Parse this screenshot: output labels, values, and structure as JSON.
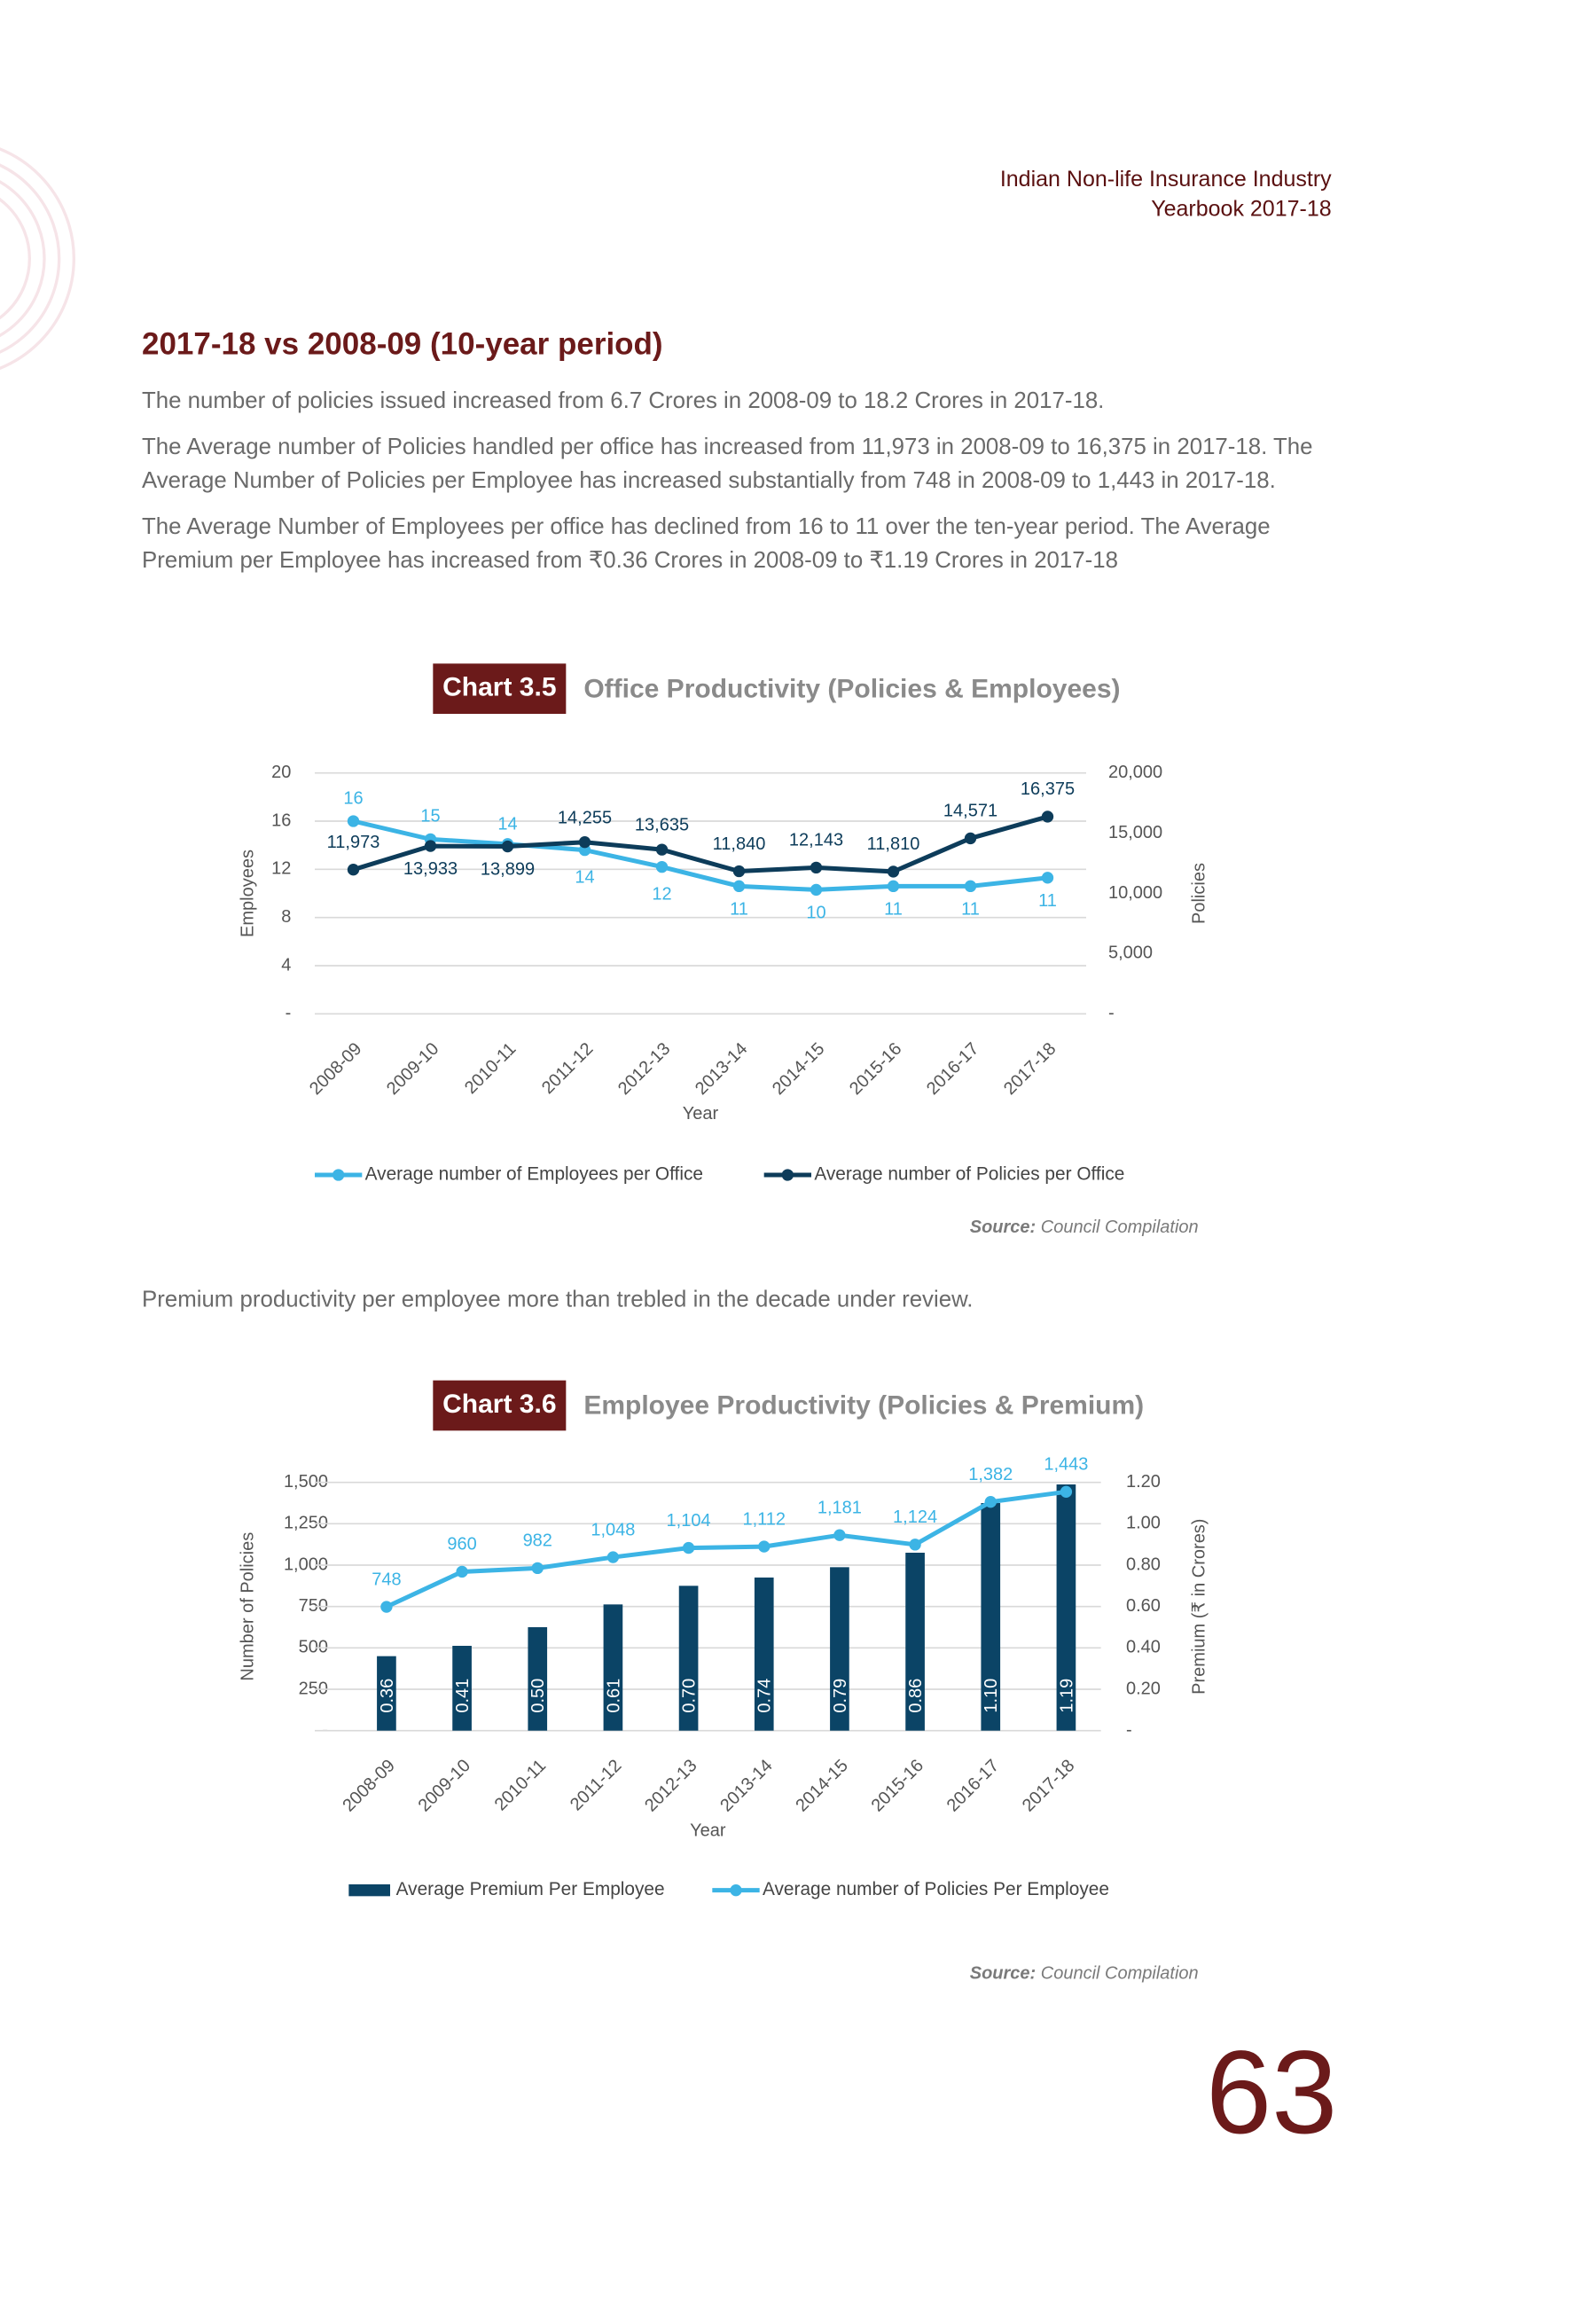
{
  "header": {
    "line1": "Indian Non-life Insurance Industry",
    "line2": "Yearbook 2017-18"
  },
  "section": {
    "heading": "2017-18 vs 2008-09 (10-year period)",
    "paragraphs": [
      [
        "The number of policies issued increased from 6.7 Crores in 2008-09 to 18.2 Crores in 2017-18."
      ],
      [
        "The Average number of Policies handled per office has increased from 11,973 in 2008-09 to 16,375 in 2017-18. The",
        "Average Number of Policies per Employee has increased substantially from 748 in 2008-09 to 1,443 in 2017-18."
      ],
      [
        "The Average Number of Employees per office has declined from 16 to 11 over the ten-year period. The Average",
        "Premium per Employee has increased from ₹0.36 Crores in 2008-09 to ₹1.19 Crores in 2017-18"
      ]
    ],
    "between_charts": "Premium productivity per employee more than trebled in the decade under review."
  },
  "chart_data": [
    {
      "type": "line",
      "chart_label": "Chart 3.5",
      "title": "Office Productivity (Policies & Employees)",
      "x_label": "Year",
      "y_label": "Employees",
      "y2_label": "Policies",
      "categories": [
        "2008-09",
        "2009-10",
        "2010-11",
        "2011-12",
        "2012-13",
        "2013-14",
        "2014-15",
        "2015-16",
        "2016-17",
        "2017-18"
      ],
      "series": [
        {
          "name": "Average number of Employees per Office",
          "color": "#3cb4e5",
          "values": [
            16,
            14.5,
            14.1,
            13.6,
            12.2,
            10.6,
            10.3,
            10.6,
            10.6,
            11.3
          ],
          "value_labels": [
            "16",
            "15",
            "14",
            "14",
            "12",
            "11",
            "10",
            "11",
            "11",
            "11"
          ]
        },
        {
          "name": "Average number of Policies per Office",
          "color": "#0d3c5a",
          "axis": "y2",
          "values": [
            11973,
            13933,
            13899,
            14255,
            13635,
            11840,
            12143,
            11810,
            14571,
            16375
          ],
          "value_labels": [
            "11,973",
            "13,933",
            "13,899",
            "14,255",
            "13,635",
            "11,840",
            "12,143",
            "11,810",
            "14,571",
            "16,375"
          ]
        }
      ],
      "ylim": [
        0,
        20
      ],
      "yticks": [
        {
          "value": 0,
          "label": "-"
        },
        4,
        8,
        12,
        16,
        20
      ],
      "y2lim": [
        0,
        20000
      ],
      "y2ticks": [
        {
          "value": 0,
          "label": "-"
        },
        {
          "value": 5000,
          "label": "5,000"
        },
        {
          "value": 10000,
          "label": "10,000"
        },
        {
          "value": 15000,
          "label": "15,000"
        },
        {
          "value": 20000,
          "label": "20,000"
        }
      ],
      "grid": true,
      "legend": "bottom",
      "source": {
        "label": "Source:",
        "text": "Council Compilation"
      }
    },
    {
      "type": "combo",
      "chart_label": "Chart 3.6",
      "title": "Employee Productivity (Policies & Premium)",
      "x_label": "Year",
      "y_label": "Number of Policies",
      "y2_label": "Premium (₹ in Crores)",
      "categories": [
        "2008-09",
        "2009-10",
        "2010-11",
        "2011-12",
        "2012-13",
        "2013-14",
        "2014-15",
        "2015-16",
        "2016-17",
        "2017-18"
      ],
      "series": [
        {
          "name": "Average Premium Per Employee",
          "type": "bar",
          "color": "#0b4466",
          "axis": "y2",
          "values": [
            0.36,
            0.41,
            0.5,
            0.61,
            0.7,
            0.74,
            0.79,
            0.86,
            1.1,
            1.19
          ],
          "value_labels": [
            "0.36",
            "0.41",
            "0.50",
            "0.61",
            "0.70",
            "0.74",
            "0.79",
            "0.86",
            "1.10",
            "1.19"
          ]
        },
        {
          "name": "Average number of Policies Per Employee",
          "type": "line",
          "color": "#3cb4e5",
          "values": [
            748,
            960,
            982,
            1048,
            1104,
            1112,
            1181,
            1124,
            1382,
            1443
          ],
          "value_labels": [
            "748",
            "960",
            "982",
            "1,048",
            "1,104",
            "1,112",
            "1,181",
            "1,124",
            "1,382",
            "1,443"
          ]
        }
      ],
      "ylim": [
        0,
        1500
      ],
      "yticks": [
        {
          "value": 0,
          "label": "-"
        },
        250,
        500,
        750,
        {
          "value": 1000,
          "label": "1,000"
        },
        {
          "value": 1250,
          "label": "1,250"
        },
        {
          "value": 1500,
          "label": "1,500"
        }
      ],
      "y2lim": [
        0,
        1.2
      ],
      "y2ticks": [
        {
          "value": 0,
          "label": "-"
        },
        {
          "value": 0.2,
          "label": "0.20"
        },
        {
          "value": 0.4,
          "label": "0.40"
        },
        {
          "value": 0.6,
          "label": "0.60"
        },
        {
          "value": 0.8,
          "label": "0.80"
        },
        {
          "value": 1,
          "label": "1.00"
        },
        {
          "value": 1.2,
          "label": "1.20"
        }
      ],
      "grid": true,
      "legend": "bottom",
      "source": {
        "label": "Source:",
        "text": "Council Compilation"
      }
    }
  ],
  "page_number": "63"
}
